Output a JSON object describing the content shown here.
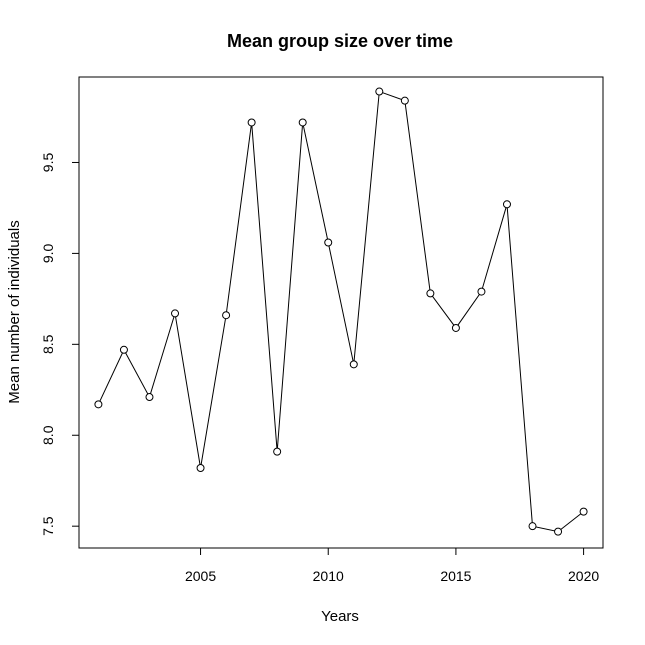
{
  "chart_data": {
    "type": "line",
    "title": "Mean group size over time",
    "xlabel": "Years",
    "ylabel": "Mean number of individuals",
    "x": [
      2001,
      2002,
      2003,
      2004,
      2005,
      2006,
      2007,
      2008,
      2009,
      2010,
      2011,
      2012,
      2013,
      2014,
      2015,
      2016,
      2017,
      2018,
      2019,
      2020
    ],
    "series": [
      {
        "values": [
          8.17,
          8.47,
          8.21,
          8.67,
          7.82,
          8.66,
          9.72,
          7.91,
          9.72,
          9.06,
          8.39,
          9.89,
          9.84,
          8.78,
          8.59,
          8.79,
          9.27,
          7.5,
          7.47,
          7.58
        ]
      }
    ],
    "xlim": [
      2000.24,
      2020.76
    ],
    "ylim": [
      7.38,
      9.97
    ],
    "xticks": [
      2005,
      2010,
      2015,
      2020
    ],
    "yticks": [
      7.5,
      8.0,
      8.5,
      9.0,
      9.5
    ],
    "xtick_labels": [
      "2005",
      "2010",
      "2015",
      "2020"
    ],
    "ytick_labels": [
      "7.5",
      "8.0",
      "8.5",
      "9.0",
      "9.5"
    ],
    "grid": false,
    "legend": "none",
    "marker": "open-circle",
    "colors": {
      "line": "#000000",
      "marker_fill": "#ffffff",
      "marker_stroke": "#000000"
    }
  }
}
